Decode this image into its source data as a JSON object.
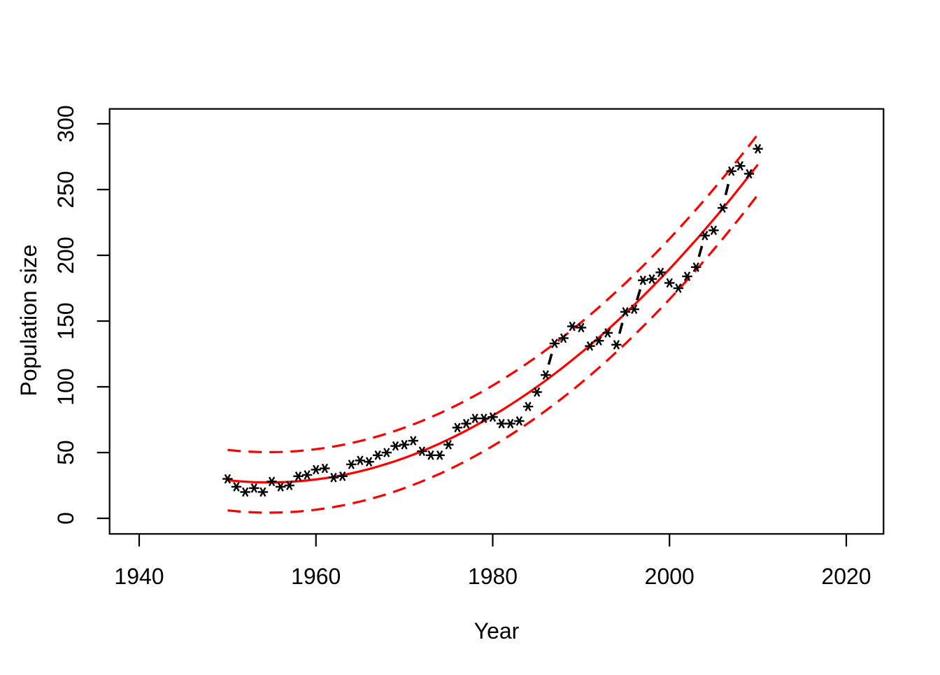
{
  "chart_data": {
    "type": "scatter",
    "title": "",
    "xlabel": "Year",
    "ylabel": "Population size",
    "x_ticks": [
      1940,
      1960,
      1980,
      2000,
      2020
    ],
    "y_ticks": [
      0,
      50,
      100,
      150,
      200,
      250,
      300
    ],
    "xlim": [
      1937,
      2024
    ],
    "ylim": [
      -12,
      311
    ],
    "grid": false,
    "legend": "none",
    "colors": {
      "points": "#000000",
      "fit_line": "#FF0000",
      "band_lines": "#FF0000",
      "axis": "#000000"
    },
    "series": [
      {
        "name": "observed-population",
        "marker": "asterisk",
        "connector": "dashed-segments-between-points",
        "color": "#000000",
        "x": [
          1950,
          1951,
          1952,
          1953,
          1954,
          1955,
          1956,
          1957,
          1958,
          1959,
          1960,
          1961,
          1962,
          1963,
          1964,
          1965,
          1966,
          1967,
          1968,
          1969,
          1970,
          1971,
          1972,
          1973,
          1974,
          1975,
          1976,
          1977,
          1978,
          1979,
          1980,
          1981,
          1982,
          1983,
          1984,
          1985,
          1986,
          1987,
          1988,
          1989,
          1990,
          1991,
          1992,
          1993,
          1994,
          1995,
          1996,
          1997,
          1998,
          1999,
          2000,
          2001,
          2002,
          2003,
          2004,
          2005,
          2006,
          2007,
          2008,
          2009,
          2010
        ],
        "y": [
          30,
          24,
          20,
          23,
          20,
          28,
          24,
          25,
          32,
          33,
          37,
          38,
          31,
          32,
          41,
          44,
          43,
          48,
          50,
          55,
          56,
          59,
          51,
          48,
          48,
          56,
          69,
          72,
          76,
          76,
          77,
          72,
          72,
          74,
          85,
          96,
          109,
          133,
          137,
          146,
          145,
          131,
          135,
          141,
          132,
          157,
          159,
          181,
          182,
          187,
          179,
          175,
          184,
          191,
          215,
          219,
          236,
          264,
          268,
          262,
          281
        ]
      },
      {
        "name": "fitted-quadratic-curve",
        "style": "solid",
        "color": "#FF0000",
        "model": "quadratic",
        "coefficients": {
          "origin_year": 1950,
          "intercept": 29.0,
          "linear": -0.733,
          "quadratic": 0.0789
        },
        "x_start": 1950,
        "x_end": 2010
      },
      {
        "name": "upper-prediction-band",
        "style": "dashed",
        "color": "#FF0000",
        "offset_from_fit": 23,
        "x_start": 1950,
        "x_end": 2010
      },
      {
        "name": "lower-prediction-band",
        "style": "dashed",
        "color": "#FF0000",
        "offset_from_fit": -23,
        "x_start": 1950,
        "x_end": 2010
      }
    ]
  }
}
